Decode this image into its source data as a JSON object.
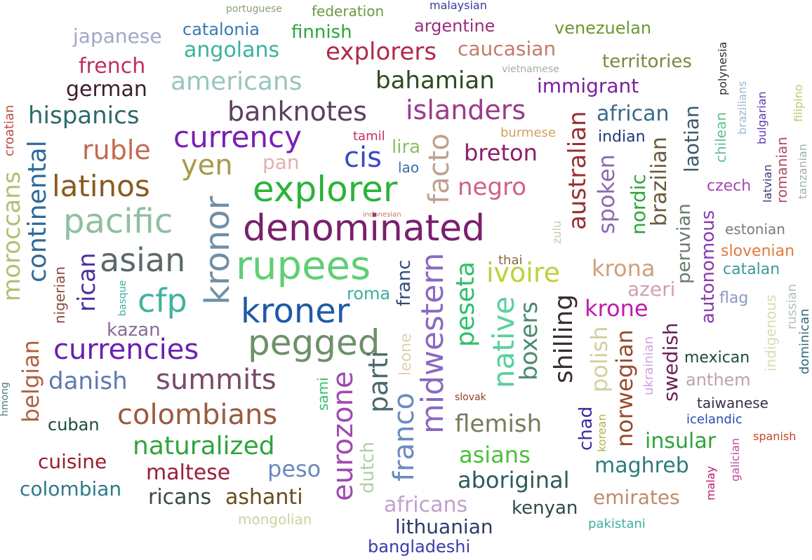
{
  "words": [
    {
      "text": "denominated",
      "color": "#7a1f6e"
    },
    {
      "text": "rupees",
      "color": "#5fcf74"
    },
    {
      "text": "explorer",
      "color": "#2bb33a"
    },
    {
      "text": "kroner",
      "color": "#1e5aa8"
    },
    {
      "text": "pegged",
      "color": "#6e8f6a"
    },
    {
      "text": "kronor",
      "color": "#6f8fa7"
    },
    {
      "text": "pacific",
      "color": "#8fbfa0"
    },
    {
      "text": "asian",
      "color": "#5a6a6a"
    },
    {
      "text": "latinos",
      "color": "#8a5a1e"
    },
    {
      "text": "currency",
      "color": "#7a1fb5"
    },
    {
      "text": "yen",
      "color": "#a89a4a"
    },
    {
      "text": "cfp",
      "color": "#3fb3a0"
    },
    {
      "text": "currencies",
      "color": "#6a1fb0"
    },
    {
      "text": "summits",
      "color": "#7a4a6a"
    },
    {
      "text": "colombians",
      "color": "#9a5a3e"
    },
    {
      "text": "naturalized",
      "color": "#2ea53a"
    },
    {
      "text": "banknotes",
      "color": "#5e3f5e"
    },
    {
      "text": "islanders",
      "color": "#9a3a8a"
    },
    {
      "text": "bahamian",
      "color": "#2e4a1e"
    },
    {
      "text": "americans",
      "color": "#9ac4c0"
    },
    {
      "text": "hispanics",
      "color": "#2e6a6a"
    },
    {
      "text": "ruble",
      "color": "#c46a50"
    },
    {
      "text": "continental",
      "color": "#2e6a9a"
    },
    {
      "text": "moroccans",
      "color": "#b0c070"
    },
    {
      "text": "rican",
      "color": "#4a2ea0"
    },
    {
      "text": "belgian",
      "color": "#b0603e"
    },
    {
      "text": "danish",
      "color": "#5a7ab0"
    },
    {
      "text": "explorers",
      "color": "#b02a4a"
    },
    {
      "text": "angolans",
      "color": "#3ab39a"
    },
    {
      "text": "japanese",
      "color": "#a0a8c8"
    },
    {
      "text": "french",
      "color": "#c0305a"
    },
    {
      "text": "german",
      "color": "#3a1e2e"
    },
    {
      "text": "catalonia",
      "color": "#3a7ab0"
    },
    {
      "text": "finnish",
      "color": "#2ea53a"
    },
    {
      "text": "portuguese",
      "color": "#8aa07a"
    },
    {
      "text": "federation",
      "color": "#6a9a3e"
    },
    {
      "text": "malaysian",
      "color": "#3a3a9a"
    },
    {
      "text": "argentine",
      "color": "#9a2e7a"
    },
    {
      "text": "venezuelan",
      "color": "#6a9a2e"
    },
    {
      "text": "caucasian",
      "color": "#c47a6a"
    },
    {
      "text": "territories",
      "color": "#7a8a3e"
    },
    {
      "text": "vietnamese",
      "color": "#a0b0a0"
    },
    {
      "text": "immigrant",
      "color": "#7a1fa0"
    },
    {
      "text": "polynesia",
      "color": "#2e2e2e"
    },
    {
      "text": "brazilians",
      "color": "#a0b8d0"
    },
    {
      "text": "bulgarian",
      "color": "#5a3ab0"
    },
    {
      "text": "filipino",
      "color": "#b0d070"
    },
    {
      "text": "african",
      "color": "#3a6a8a"
    },
    {
      "text": "laotian",
      "color": "#3a5a6a"
    },
    {
      "text": "indian",
      "color": "#1e3a7a"
    },
    {
      "text": "burmese",
      "color": "#d0a060"
    },
    {
      "text": "tamil",
      "color": "#c0306a"
    },
    {
      "text": "facto",
      "color": "#c0a090"
    },
    {
      "text": "breton",
      "color": "#8a1e6a"
    },
    {
      "text": "cis",
      "color": "#3a4ac0"
    },
    {
      "text": "lira",
      "color": "#8ac060"
    },
    {
      "text": "lao",
      "color": "#3a6ab0"
    },
    {
      "text": "pan",
      "color": "#e0b0b0"
    },
    {
      "text": "negro",
      "color": "#d0608a"
    },
    {
      "text": "australian",
      "color": "#9a2e2e"
    },
    {
      "text": "spoken",
      "color": "#8a6ab0"
    },
    {
      "text": "brazilian",
      "color": "#6a5a3a"
    },
    {
      "text": "chilean",
      "color": "#60c090"
    },
    {
      "text": "romanian",
      "color": "#b04a60"
    },
    {
      "text": "latvian",
      "color": "#3a3a7a"
    },
    {
      "text": "tanzanian",
      "color": "#a0b0a0"
    },
    {
      "text": "czech",
      "color": "#a04ab0"
    },
    {
      "text": "nordic",
      "color": "#2ea53a"
    },
    {
      "text": "peruvian",
      "color": "#6a7a6a"
    },
    {
      "text": "estonian",
      "color": "#7a7a7a"
    },
    {
      "text": "slovenian",
      "color": "#e07a3a"
    },
    {
      "text": "catalan",
      "color": "#3a9a9a"
    },
    {
      "text": "autonomous",
      "color": "#8a3ab0"
    },
    {
      "text": "flag",
      "color": "#8a9ac0"
    },
    {
      "text": "indigenous",
      "color": "#d0e0b0"
    },
    {
      "text": "russian",
      "color": "#b0c0c0"
    },
    {
      "text": "dominican",
      "color": "#2e6a7a"
    },
    {
      "text": "zulu",
      "color": "#c0d0a0"
    },
    {
      "text": "indonesian",
      "color": "#c07a6a"
    },
    {
      "text": "thai",
      "color": "#8a6a3a"
    },
    {
      "text": "ivoire",
      "color": "#c0d03a"
    },
    {
      "text": "krona",
      "color": "#d0a07a"
    },
    {
      "text": "azeri",
      "color": "#d0a0b0"
    },
    {
      "text": "krone",
      "color": "#c01ab0"
    },
    {
      "text": "peseta",
      "color": "#2ec06a"
    },
    {
      "text": "midwestern",
      "color": "#8a6ac0"
    },
    {
      "text": "franc",
      "color": "#2e4a7a"
    },
    {
      "text": "roma",
      "color": "#3ab0a0"
    },
    {
      "text": "native",
      "color": "#5ad0a0"
    },
    {
      "text": "boxers",
      "color": "#4a8a6a"
    },
    {
      "text": "shilling",
      "color": "#3a2e2e"
    },
    {
      "text": "polish",
      "color": "#d0d0a0"
    },
    {
      "text": "norwegian",
      "color": "#9a4a2e"
    },
    {
      "text": "ukrainian",
      "color": "#d0a0e0"
    },
    {
      "text": "swedish",
      "color": "#6a1e5a"
    },
    {
      "text": "mexican",
      "color": "#1e4a3a"
    },
    {
      "text": "anthem",
      "color": "#c0a0b0"
    },
    {
      "text": "taiwanese",
      "color": "#3a2e4a"
    },
    {
      "text": "icelandic",
      "color": "#2e4ab0"
    },
    {
      "text": "spanish",
      "color": "#c04a2e"
    },
    {
      "text": "croatian",
      "color": "#c04a3a"
    },
    {
      "text": "nigerian",
      "color": "#8a4a3a"
    },
    {
      "text": "basque",
      "color": "#3ab0a0"
    },
    {
      "text": "kazan",
      "color": "#8a6a9a"
    },
    {
      "text": "hmong",
      "color": "#4a7a7a"
    },
    {
      "text": "cuban",
      "color": "#1e4a3a"
    },
    {
      "text": "cuisine",
      "color": "#9a1e2e"
    },
    {
      "text": "colombian",
      "color": "#2e7a8a"
    },
    {
      "text": "maltese",
      "color": "#9a1e3a"
    },
    {
      "text": "ricans",
      "color": "#3a4a4a"
    },
    {
      "text": "ashanti",
      "color": "#6a4a1e"
    },
    {
      "text": "mongolian",
      "color": "#d0d0a0"
    },
    {
      "text": "peso",
      "color": "#6a8ac0"
    },
    {
      "text": "sami",
      "color": "#2ec06a"
    },
    {
      "text": "eurozone",
      "color": "#a04ab0"
    },
    {
      "text": "leone",
      "color": "#e0d0b0"
    },
    {
      "text": "parti",
      "color": "#4a6a6a"
    },
    {
      "text": "dutch",
      "color": "#b0d0a0"
    },
    {
      "text": "francо",
      "color": "#6a8ac0"
    },
    {
      "text": "africans",
      "color": "#c0a0d0"
    },
    {
      "text": "lithuanian",
      "color": "#2e3a6a"
    },
    {
      "text": "bangladeshi",
      "color": "#3a3ab0"
    },
    {
      "text": "slovak",
      "color": "#9a3a2e"
    },
    {
      "text": "flemish",
      "color": "#7a7a5a"
    },
    {
      "text": "asians",
      "color": "#4ac03a"
    },
    {
      "text": "aboriginal",
      "color": "#2e5a5a"
    },
    {
      "text": "kenyan",
      "color": "#2e4a4a"
    },
    {
      "text": "chad",
      "color": "#3a2ea0"
    },
    {
      "text": "korean",
      "color": "#b0b04a"
    },
    {
      "text": "insular",
      "color": "#2ea53a"
    },
    {
      "text": "maghreb",
      "color": "#2e7a7a"
    },
    {
      "text": "emirates",
      "color": "#c08a6a"
    },
    {
      "text": "pakistani",
      "color": "#3ab0a0"
    },
    {
      "text": "malay",
      "color": "#c01a6a"
    },
    {
      "text": "galician",
      "color": "#c04a9a"
    }
  ]
}
